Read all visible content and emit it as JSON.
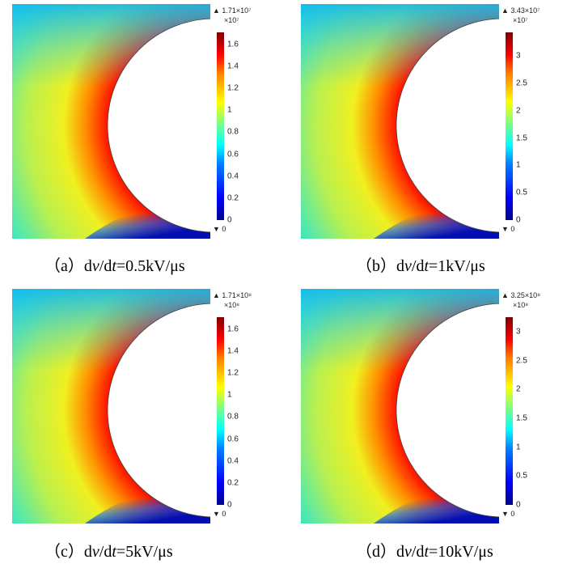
{
  "chart_data": {
    "type": "heatmap",
    "colormap": [
      "#00008f",
      "#0000ff",
      "#0080ff",
      "#00ffff",
      "#80ff80",
      "#ffff00",
      "#ff8000",
      "#ff0000",
      "#800000"
    ],
    "panels": [
      {
        "max_label": "▲ 1.71×10⁷",
        "multiplier": "×10⁷",
        "min_label": "▼ 0",
        "max": 1.71,
        "ticks": [
          "0",
          "0.2",
          "0.4",
          "0.6",
          "0.8",
          "1",
          "1.2",
          "1.4",
          "1.6"
        ],
        "tick_values": [
          0,
          0.2,
          0.4,
          0.6,
          0.8,
          1,
          1.2,
          1.4,
          1.6
        ],
        "caption": {
          "label": "（a）",
          "d1": "d",
          "v": "v",
          "slash": "/d",
          "t": "t",
          "rest": "=0.5kV/μs"
        }
      },
      {
        "max_label": "▲ 3.43×10⁷",
        "multiplier": "×10⁷",
        "min_label": "▼ 0",
        "max": 3.43,
        "ticks": [
          "0",
          "0.5",
          "1",
          "1.5",
          "2",
          "2.5",
          "3"
        ],
        "tick_values": [
          0,
          0.5,
          1,
          1.5,
          2,
          2.5,
          3
        ],
        "caption": {
          "label": "（b）",
          "d1": "d",
          "v": "v",
          "slash": "/d",
          "t": "t",
          "rest": "=1kV/μs"
        }
      },
      {
        "max_label": "▲ 1.71×10⁸",
        "multiplier": "×10⁸",
        "min_label": "▼ 0",
        "max": 1.71,
        "ticks": [
          "0",
          "0.2",
          "0.4",
          "0.6",
          "0.8",
          "1",
          "1.2",
          "1.4",
          "1.6"
        ],
        "tick_values": [
          0,
          0.2,
          0.4,
          0.6,
          0.8,
          1,
          1.2,
          1.4,
          1.6
        ],
        "caption": {
          "label": "（c）",
          "d1": "d",
          "v": "v",
          "slash": "/d",
          "t": "t",
          "rest": "=5kV/μs"
        }
      },
      {
        "max_label": "▲ 3.25×10⁸",
        "multiplier": "×10⁸",
        "min_label": "▼ 0",
        "max": 3.25,
        "ticks": [
          "0",
          "0.5",
          "1",
          "1.5",
          "2",
          "2.5",
          "3"
        ],
        "tick_values": [
          0,
          0.5,
          1,
          1.5,
          2,
          2.5,
          3
        ],
        "caption": {
          "label": "（d）",
          "d1": "d",
          "v": "v",
          "slash": "/d",
          "t": "t",
          "rest": "=10kV/μs"
        }
      }
    ]
  }
}
